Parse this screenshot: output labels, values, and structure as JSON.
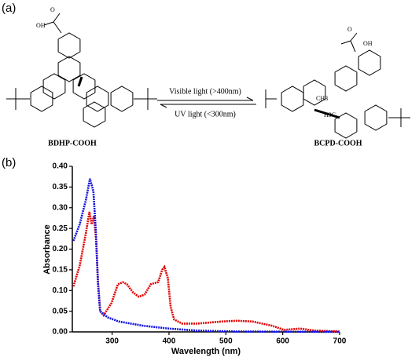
{
  "panel_a": "(a)",
  "panel_b": "(b)",
  "structures": {
    "left": {
      "name": "BDHP-COOH",
      "o": "O",
      "oh": "OH"
    },
    "right": {
      "name": "BCPD-COOH",
      "o": "O",
      "oh": "OH",
      "ch3": "CH3",
      "h3c": "H3C"
    }
  },
  "arrows": {
    "forward": "Visible light (>400nm)",
    "backward": "UV light (<300nm)"
  },
  "chart_data": {
    "type": "line",
    "x_label": "Wavelength (nm)",
    "y_label": "Absorbance",
    "xlim": [
      230,
      700
    ],
    "ylim": [
      0,
      0.4
    ],
    "xticks": [
      300,
      400,
      500,
      600,
      700
    ],
    "yticks": [
      {
        "value": 0,
        "label": "0.00"
      },
      {
        "value": 0.05,
        "label": "0.05"
      },
      {
        "value": 0.1,
        "label": "0.10"
      },
      {
        "value": 0.15,
        "label": "0.15"
      },
      {
        "value": 0.2,
        "label": "0.20"
      },
      {
        "value": 0.25,
        "label": "0.25"
      },
      {
        "value": 0.3,
        "label": "0.30"
      },
      {
        "value": 0.35,
        "label": "0.35"
      },
      {
        "value": 0.4,
        "label": "0.40"
      }
    ],
    "series": [
      {
        "color": "#e00000",
        "x": [
          232,
          243,
          254,
          260,
          264,
          268,
          272,
          275,
          279,
          285,
          299,
          310,
          319,
          326,
          337,
          347,
          357,
          368,
          374,
          381,
          388,
          392,
          398,
          403,
          409,
          423,
          450,
          492,
          519,
          547,
          581,
          602,
          630,
          657,
          700
        ],
        "values": [
          0.11,
          0.16,
          0.24,
          0.29,
          0.26,
          0.28,
          0.22,
          0.12,
          0.05,
          0.04,
          0.07,
          0.115,
          0.12,
          0.115,
          0.095,
          0.085,
          0.09,
          0.115,
          0.118,
          0.12,
          0.15,
          0.157,
          0.13,
          0.06,
          0.03,
          0.02,
          0.02,
          0.025,
          0.027,
          0.025,
          0.015,
          0.005,
          0.008,
          0.003,
          0.001
        ]
      },
      {
        "color": "#1010e0",
        "x": [
          232,
          243,
          254,
          261,
          267,
          271,
          275,
          279,
          292,
          312,
          354,
          400,
          450,
          519,
          700
        ],
        "values": [
          0.22,
          0.26,
          0.32,
          0.37,
          0.34,
          0.25,
          0.12,
          0.05,
          0.035,
          0.025,
          0.015,
          0.008,
          0.003,
          0.001,
          0
        ]
      }
    ]
  }
}
